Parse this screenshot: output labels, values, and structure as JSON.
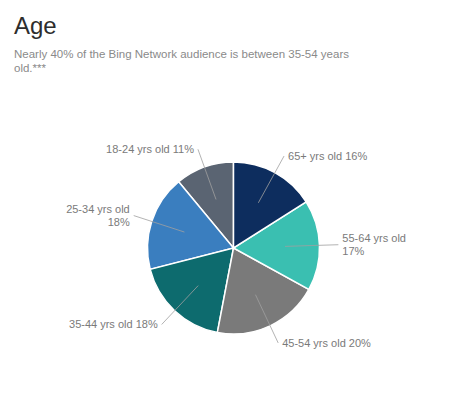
{
  "chart_data": {
    "type": "pie",
    "title": "Age",
    "subtitle": "Nearly 40% of the Bing Network audience is between 35-54 years\nold.***",
    "categories": [
      "18-24 yrs old",
      "25-34 yrs old",
      "35-44 yrs old",
      "45-54 yrs old",
      "55-64 yrs old",
      "65+ yrs old"
    ],
    "values": [
      11,
      18,
      18,
      20,
      17,
      16
    ],
    "colors": [
      "#5a6472",
      "#3a7ebf",
      "#0d6b6e",
      "#7a7a7a",
      "#3abfb1",
      "#0d2d5e"
    ],
    "annotations": [
      "18-24 yrs old 11%",
      "25-34 yrs old\n18%",
      "35-44 yrs old 18%",
      "45-54 yrs old 20%",
      "55-64 yrs old\n17%",
      "65+ yrs old 16%"
    ]
  }
}
